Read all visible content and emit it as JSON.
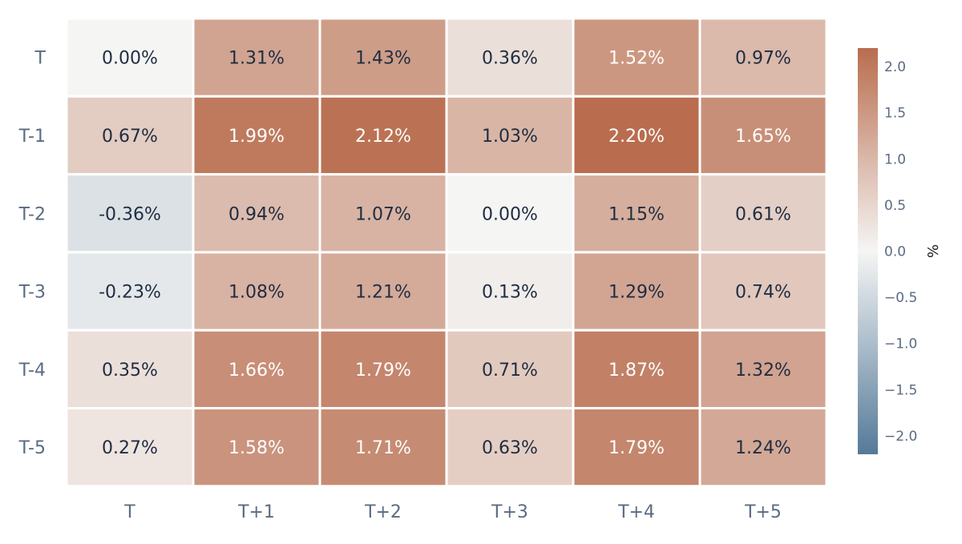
{
  "chart_data": {
    "type": "heatmap",
    "rows": [
      "T",
      "T-1",
      "T-2",
      "T-3",
      "T-4",
      "T-5"
    ],
    "columns": [
      "T",
      "T+1",
      "T+2",
      "T+3",
      "T+4",
      "T+5"
    ],
    "values": [
      [
        0.0,
        1.31,
        1.43,
        0.36,
        1.52,
        0.97
      ],
      [
        0.67,
        1.99,
        2.12,
        1.03,
        2.2,
        1.65
      ],
      [
        -0.36,
        0.94,
        1.07,
        0.0,
        1.15,
        0.61
      ],
      [
        -0.23,
        1.08,
        1.21,
        0.13,
        1.29,
        0.74
      ],
      [
        0.35,
        1.66,
        1.79,
        0.71,
        1.87,
        1.32
      ],
      [
        0.27,
        1.58,
        1.71,
        0.63,
        1.79,
        1.24
      ]
    ],
    "cell_labels": [
      [
        "0.00%",
        "1.31%",
        "1.43%",
        "0.36%",
        "1.52%",
        "0.97%"
      ],
      [
        "0.67%",
        "1.99%",
        "2.12%",
        "1.03%",
        "2.20%",
        "1.65%"
      ],
      [
        "-0.36%",
        "0.94%",
        "1.07%",
        "0.00%",
        "1.15%",
        "0.61%"
      ],
      [
        "-0.23%",
        "1.08%",
        "1.21%",
        "0.13%",
        "1.29%",
        "0.74%"
      ],
      [
        "0.35%",
        "1.66%",
        "1.79%",
        "0.71%",
        "1.87%",
        "1.32%"
      ],
      [
        "0.27%",
        "1.58%",
        "1.71%",
        "0.63%",
        "1.79%",
        "1.24%"
      ]
    ],
    "colorbar": {
      "title": "%",
      "range": [
        -2.2,
        2.2
      ],
      "ticks": [
        2.0,
        1.5,
        1.0,
        0.5,
        0.0,
        -0.5,
        -1.0,
        -1.5,
        -2.0
      ],
      "tick_labels": [
        "2.0",
        "1.5",
        "1.0",
        "0.5",
        "0.0",
        "−0.5",
        "−1.0",
        "−1.5",
        "−2.0"
      ],
      "position": "right"
    },
    "colors": {
      "negative_extreme": "#557a99",
      "neutral": "#f5f5f4",
      "positive_extreme": "#b96d4e",
      "dark_text": "#1f2d42",
      "light_text": "#ffffff",
      "grid_line": "#ffffff"
    }
  }
}
